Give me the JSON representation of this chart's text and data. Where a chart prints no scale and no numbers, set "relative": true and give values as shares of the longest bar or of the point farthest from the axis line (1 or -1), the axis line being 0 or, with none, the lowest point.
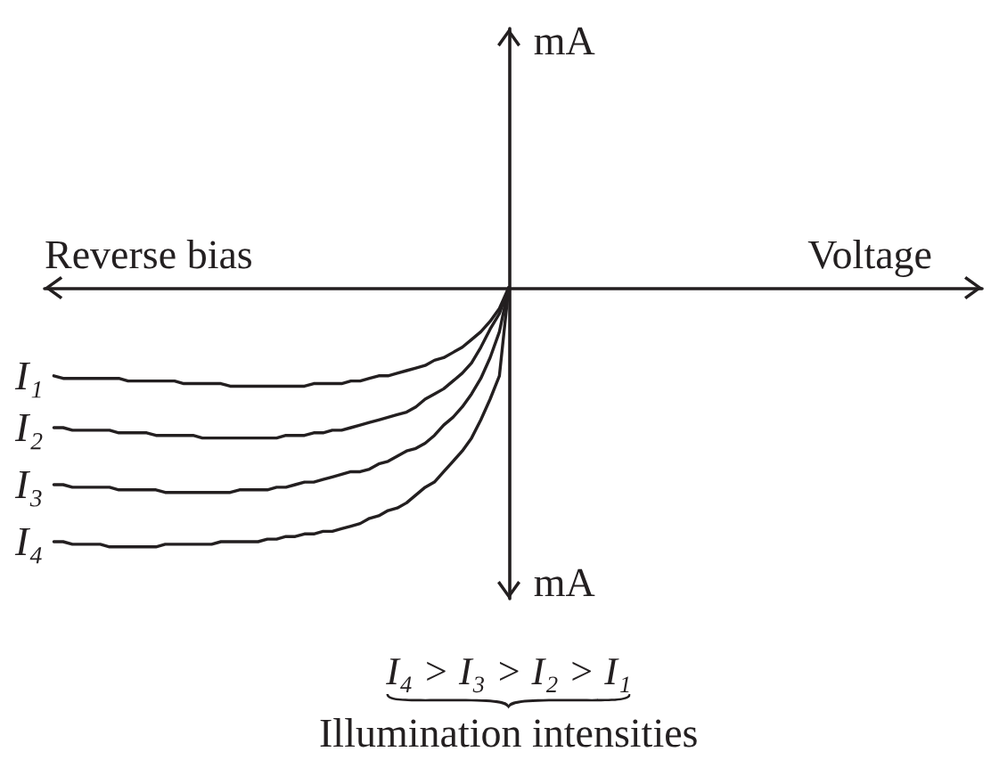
{
  "chart_data": {
    "type": "line",
    "xlabel": "Voltage",
    "annotations": [
      "mA",
      "Reverse bias",
      "mA",
      "I₄ > I₃ > I₂ > I₁",
      "Illumination intensities"
    ],
    "relative": true,
    "grid": false,
    "marker": "none",
    "line_style": "solid",
    "categories": [
      null,
      null,
      null,
      null,
      null,
      null,
      null,
      null,
      null,
      null,
      null,
      null,
      null,
      null,
      null,
      null,
      null,
      null,
      null,
      null,
      null,
      null,
      null,
      null,
      null,
      null,
      null,
      null,
      null,
      null,
      null,
      null,
      null,
      null,
      null,
      null,
      null,
      null,
      null,
      null,
      null,
      null,
      null,
      null,
      null,
      null,
      null,
      null,
      null,
      null,
      null,
      null,
      null,
      null,
      null,
      null,
      null,
      null,
      null,
      null,
      null,
      null,
      null,
      null,
      null,
      null,
      null,
      null,
      null,
      null,
      null,
      null,
      null,
      null,
      null,
      null,
      null,
      null,
      null,
      null,
      null,
      null,
      null,
      null,
      null,
      null,
      null,
      null,
      null,
      null,
      null,
      null,
      null,
      null,
      null,
      null,
      null,
      null,
      null,
      null,
      null,
      null
    ],
    "series": [
      {
        "name": "I₁",
        "color": "#231f20",
        "values": [
          null,
          -0.34,
          -0.35,
          -0.35,
          -0.35,
          -0.35,
          -0.35,
          -0.35,
          -0.35,
          -0.36,
          -0.36,
          -0.36,
          -0.36,
          -0.36,
          -0.36,
          -0.37,
          -0.37,
          -0.37,
          -0.37,
          -0.37,
          -0.38,
          -0.38,
          -0.38,
          -0.38,
          -0.38,
          -0.38,
          -0.38,
          -0.38,
          -0.38,
          -0.37,
          -0.37,
          -0.37,
          -0.37,
          -0.36,
          -0.36,
          -0.35,
          -0.34,
          -0.34,
          -0.33,
          -0.32,
          -0.31,
          -0.3,
          -0.28,
          -0.27,
          -0.25,
          -0.23,
          -0.2,
          -0.17,
          -0.13,
          -0.08,
          0,
          null,
          null,
          null,
          null,
          null,
          null,
          null,
          null,
          null,
          null,
          null,
          null,
          null,
          null,
          null,
          null,
          null,
          null,
          null,
          null,
          null,
          null,
          null,
          null,
          null,
          null,
          null,
          null,
          null,
          null,
          null,
          null,
          null,
          null,
          null,
          null,
          null,
          null,
          null,
          null,
          null,
          null,
          null,
          null,
          null,
          null,
          null,
          null,
          null,
          null,
          null
        ]
      },
      {
        "name": "I₂",
        "color": "#231f20",
        "values": [
          null,
          -0.54,
          -0.54,
          -0.55,
          -0.55,
          -0.55,
          -0.55,
          -0.55,
          -0.56,
          -0.56,
          -0.56,
          -0.56,
          -0.57,
          -0.57,
          -0.57,
          -0.57,
          -0.57,
          -0.58,
          -0.58,
          -0.58,
          -0.58,
          -0.58,
          -0.58,
          -0.58,
          -0.58,
          -0.58,
          -0.57,
          -0.57,
          -0.57,
          -0.56,
          -0.56,
          -0.55,
          -0.55,
          -0.54,
          -0.53,
          -0.52,
          -0.51,
          -0.5,
          -0.49,
          -0.48,
          -0.46,
          -0.43,
          -0.41,
          -0.39,
          -0.36,
          -0.33,
          -0.29,
          -0.23,
          -0.16,
          -0.1,
          0,
          null,
          null,
          null,
          null,
          null,
          null,
          null,
          null,
          null,
          null,
          null,
          null,
          null,
          null,
          null,
          null,
          null,
          null,
          null,
          null,
          null,
          null,
          null,
          null,
          null,
          null,
          null,
          null,
          null,
          null,
          null,
          null,
          null,
          null,
          null,
          null,
          null,
          null,
          null,
          null,
          null,
          null,
          null,
          null,
          null,
          null,
          null,
          null,
          null,
          null,
          null
        ]
      },
      {
        "name": "I₃",
        "color": "#231f20",
        "values": [
          null,
          -0.76,
          -0.76,
          -0.77,
          -0.77,
          -0.77,
          -0.77,
          -0.77,
          -0.78,
          -0.78,
          -0.78,
          -0.78,
          -0.78,
          -0.79,
          -0.79,
          -0.79,
          -0.79,
          -0.79,
          -0.79,
          -0.79,
          -0.79,
          -0.78,
          -0.78,
          -0.78,
          -0.78,
          -0.77,
          -0.77,
          -0.76,
          -0.75,
          -0.75,
          -0.74,
          -0.73,
          -0.72,
          -0.71,
          -0.71,
          -0.7,
          -0.68,
          -0.67,
          -0.65,
          -0.63,
          -0.62,
          -0.6,
          -0.57,
          -0.53,
          -0.5,
          -0.46,
          -0.41,
          -0.35,
          -0.27,
          -0.17,
          0,
          null,
          null,
          null,
          null,
          null,
          null,
          null,
          null,
          null,
          null,
          null,
          null,
          null,
          null,
          null,
          null,
          null,
          null,
          null,
          null,
          null,
          null,
          null,
          null,
          null,
          null,
          null,
          null,
          null,
          null,
          null,
          null,
          null,
          null,
          null,
          null,
          null,
          null,
          null,
          null,
          null,
          null,
          null,
          null,
          null,
          null,
          null,
          null,
          null,
          null,
          null
        ]
      },
      {
        "name": "I₄",
        "color": "#231f20",
        "values": [
          null,
          -0.98,
          -0.98,
          -0.99,
          -0.99,
          -0.99,
          -0.99,
          -1,
          -1,
          -1,
          -1,
          -1,
          -1,
          -0.99,
          -0.99,
          -0.99,
          -0.99,
          -0.99,
          -0.99,
          -0.98,
          -0.98,
          -0.98,
          -0.98,
          -0.98,
          -0.97,
          -0.97,
          -0.96,
          -0.96,
          -0.95,
          -0.95,
          -0.94,
          -0.94,
          -0.93,
          -0.92,
          -0.91,
          -0.89,
          -0.88,
          -0.86,
          -0.85,
          -0.83,
          -0.8,
          -0.77,
          -0.75,
          -0.71,
          -0.67,
          -0.63,
          -0.58,
          -0.51,
          -0.43,
          -0.34,
          0,
          null,
          null,
          null,
          null,
          null,
          null,
          null,
          null,
          null,
          null,
          null,
          null,
          null,
          null,
          null,
          null,
          null,
          null,
          null,
          null,
          null,
          null,
          null,
          null,
          null,
          null,
          null,
          null,
          null,
          null,
          null,
          null,
          null,
          null,
          null,
          null,
          null,
          null,
          null,
          null,
          null,
          null,
          null,
          null,
          null,
          null,
          null,
          null,
          null,
          null,
          null
        ]
      }
    ]
  }
}
